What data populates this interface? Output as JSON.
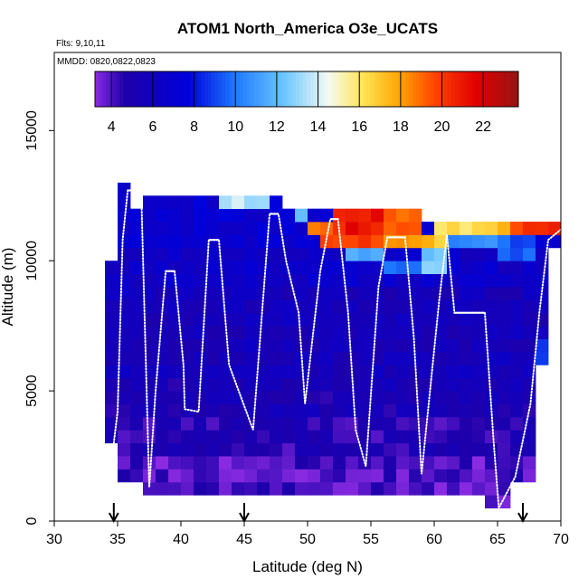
{
  "chart_data": {
    "type": "heatmap",
    "title": "ATOM1 North_America O3e_UCATS",
    "flights_label": "Flts: 9,10,11",
    "mmdd_label": "MMDD: 0820,0822,0823",
    "xlabel": "Latitude (deg N)",
    "ylabel": "Altitude (m)",
    "xlim": [
      30,
      70
    ],
    "ylim": [
      0,
      18000
    ],
    "x_ticks": [
      30,
      35,
      40,
      45,
      50,
      55,
      60,
      65,
      70
    ],
    "y_ticks": [
      0,
      5000,
      10000,
      15000
    ],
    "colorbar": {
      "range": [
        3.2,
        23.7
      ],
      "ticks": [
        4,
        6,
        8,
        10,
        12,
        14,
        16,
        18,
        20,
        22
      ]
    },
    "arrows_at_latitude": [
      34.7,
      45,
      67
    ],
    "column_ranges": [
      {
        "lat_from": 34,
        "lat_to": 35,
        "alt_from": 3000,
        "alt_to": 10000
      },
      {
        "lat_from": 35,
        "lat_to": 36,
        "alt_from": 1500,
        "alt_to": 13000
      },
      {
        "lat_from": 36,
        "lat_to": 37,
        "alt_from": 1500,
        "alt_to": 12000
      },
      {
        "lat_from": 37,
        "lat_to": 43,
        "alt_from": 1000,
        "alt_to": 12500
      },
      {
        "lat_from": 43,
        "lat_to": 48,
        "alt_from": 1000,
        "alt_to": 12500
      },
      {
        "lat_from": 48,
        "lat_to": 52,
        "alt_from": 1000,
        "alt_to": 12000
      },
      {
        "lat_from": 52,
        "lat_to": 59,
        "alt_from": 1000,
        "alt_to": 12000
      },
      {
        "lat_from": 59,
        "lat_to": 61,
        "alt_from": 1000,
        "alt_to": 11500
      },
      {
        "lat_from": 61,
        "lat_to": 64,
        "alt_from": 1000,
        "alt_to": 11500
      },
      {
        "lat_from": 64,
        "lat_to": 66,
        "alt_from": 500,
        "alt_to": 11500
      },
      {
        "lat_from": 66,
        "lat_to": 68,
        "alt_from": 1500,
        "alt_to": 11500
      },
      {
        "lat_from": 68,
        "lat_to": 69,
        "alt_from": 6000,
        "alt_to": 11500
      },
      {
        "lat_from": 69,
        "lat_to": 70,
        "alt_from": 10500,
        "alt_to": 11500
      }
    ],
    "o3_profile_by_altitude": [
      {
        "alt_from": 0,
        "alt_to": 2500,
        "value": 4.0
      },
      {
        "alt_from": 2500,
        "alt_to": 4000,
        "value": 4.6
      },
      {
        "alt_from": 4000,
        "alt_to": 5500,
        "value": 5.2
      },
      {
        "alt_from": 5500,
        "alt_to": 9000,
        "value": 5.6
      },
      {
        "alt_from": 9000,
        "alt_to": 10500,
        "value": 6.4
      },
      {
        "alt_from": 10500,
        "alt_to": 13000,
        "value": 7.0
      }
    ],
    "high_ozone_patches": [
      {
        "lat_from": 50,
        "lat_to": 52,
        "alt_from": 11000,
        "alt_to": 11500,
        "value": 19
      },
      {
        "lat_from": 52,
        "lat_to": 56,
        "alt_from": 11000,
        "alt_to": 12000,
        "value": 21
      },
      {
        "lat_from": 56,
        "lat_to": 59,
        "alt_from": 11000,
        "alt_to": 12000,
        "value": 19
      },
      {
        "lat_from": 51,
        "lat_to": 56,
        "alt_from": 10500,
        "alt_to": 11000,
        "value": 20
      },
      {
        "lat_from": 56,
        "lat_to": 60,
        "alt_from": 10500,
        "alt_to": 11000,
        "value": 18
      },
      {
        "lat_from": 60,
        "lat_to": 63,
        "alt_from": 10500,
        "alt_to": 11500,
        "value": 16
      },
      {
        "lat_from": 63,
        "lat_to": 66,
        "alt_from": 11000,
        "alt_to": 11500,
        "value": 17
      },
      {
        "lat_from": 66,
        "lat_to": 70,
        "alt_from": 11000,
        "alt_to": 11500,
        "value": 20
      },
      {
        "lat_from": 43,
        "lat_to": 45,
        "alt_from": 12000,
        "alt_to": 12500,
        "value": 13.5
      },
      {
        "lat_from": 45,
        "lat_to": 47,
        "alt_from": 12000,
        "alt_to": 12500,
        "value": 12.5
      },
      {
        "lat_from": 49,
        "lat_to": 50,
        "alt_from": 11500,
        "alt_to": 12000,
        "value": 12
      },
      {
        "lat_from": 53,
        "lat_to": 56,
        "alt_from": 10000,
        "alt_to": 10500,
        "value": 11
      },
      {
        "lat_from": 59,
        "lat_to": 61,
        "alt_from": 9500,
        "alt_to": 10500,
        "value": 12.5
      },
      {
        "lat_from": 56,
        "lat_to": 59,
        "alt_from": 9500,
        "alt_to": 10000,
        "value": 9.5
      },
      {
        "lat_from": 61,
        "lat_to": 65,
        "alt_from": 10500,
        "alt_to": 11000,
        "value": 10.5
      },
      {
        "lat_from": 65,
        "lat_to": 68,
        "alt_from": 10000,
        "alt_to": 11000,
        "value": 9.5
      },
      {
        "lat_from": 68,
        "lat_to": 69,
        "alt_from": 6000,
        "alt_to": 7000,
        "value": 9.0
      }
    ],
    "flight_track": [
      {
        "lat": 34.7,
        "alt": 3000
      },
      {
        "lat": 35.0,
        "alt": 4200
      },
      {
        "lat": 35.4,
        "alt": 10800
      },
      {
        "lat": 35.8,
        "alt": 12700
      },
      {
        "lat": 36.7,
        "alt": 12700
      },
      {
        "lat": 36.9,
        "alt": 12000
      },
      {
        "lat": 37.5,
        "alt": 1300
      },
      {
        "lat": 38.0,
        "alt": 5000
      },
      {
        "lat": 38.8,
        "alt": 9600
      },
      {
        "lat": 39.5,
        "alt": 9600
      },
      {
        "lat": 40.2,
        "alt": 6000
      },
      {
        "lat": 40.3,
        "alt": 4300
      },
      {
        "lat": 41.4,
        "alt": 4200
      },
      {
        "lat": 42.2,
        "alt": 10800
      },
      {
        "lat": 43.0,
        "alt": 10800
      },
      {
        "lat": 43.8,
        "alt": 6000
      },
      {
        "lat": 45.7,
        "alt": 3500
      },
      {
        "lat": 47.0,
        "alt": 11800
      },
      {
        "lat": 47.7,
        "alt": 11800
      },
      {
        "lat": 48.3,
        "alt": 10000
      },
      {
        "lat": 49.3,
        "alt": 8000
      },
      {
        "lat": 49.8,
        "alt": 4500
      },
      {
        "lat": 51.0,
        "alt": 9600
      },
      {
        "lat": 51.8,
        "alt": 11600
      },
      {
        "lat": 52.4,
        "alt": 11600
      },
      {
        "lat": 53.2,
        "alt": 8000
      },
      {
        "lat": 53.8,
        "alt": 3500
      },
      {
        "lat": 54.6,
        "alt": 2100
      },
      {
        "lat": 55.6,
        "alt": 9000
      },
      {
        "lat": 56.3,
        "alt": 10900
      },
      {
        "lat": 57.7,
        "alt": 10900
      },
      {
        "lat": 58.4,
        "alt": 7000
      },
      {
        "lat": 59.0,
        "alt": 1800
      },
      {
        "lat": 60.4,
        "alt": 8500
      },
      {
        "lat": 61.0,
        "alt": 11000
      },
      {
        "lat": 61.6,
        "alt": 8000
      },
      {
        "lat": 64.0,
        "alt": 8000
      },
      {
        "lat": 64.7,
        "alt": 3000
      },
      {
        "lat": 65.1,
        "alt": 500
      },
      {
        "lat": 66.4,
        "alt": 1700
      },
      {
        "lat": 67.6,
        "alt": 4500
      },
      {
        "lat": 68.3,
        "alt": 8000
      },
      {
        "lat": 69.0,
        "alt": 10800
      },
      {
        "lat": 70.0,
        "alt": 11200
      }
    ]
  }
}
